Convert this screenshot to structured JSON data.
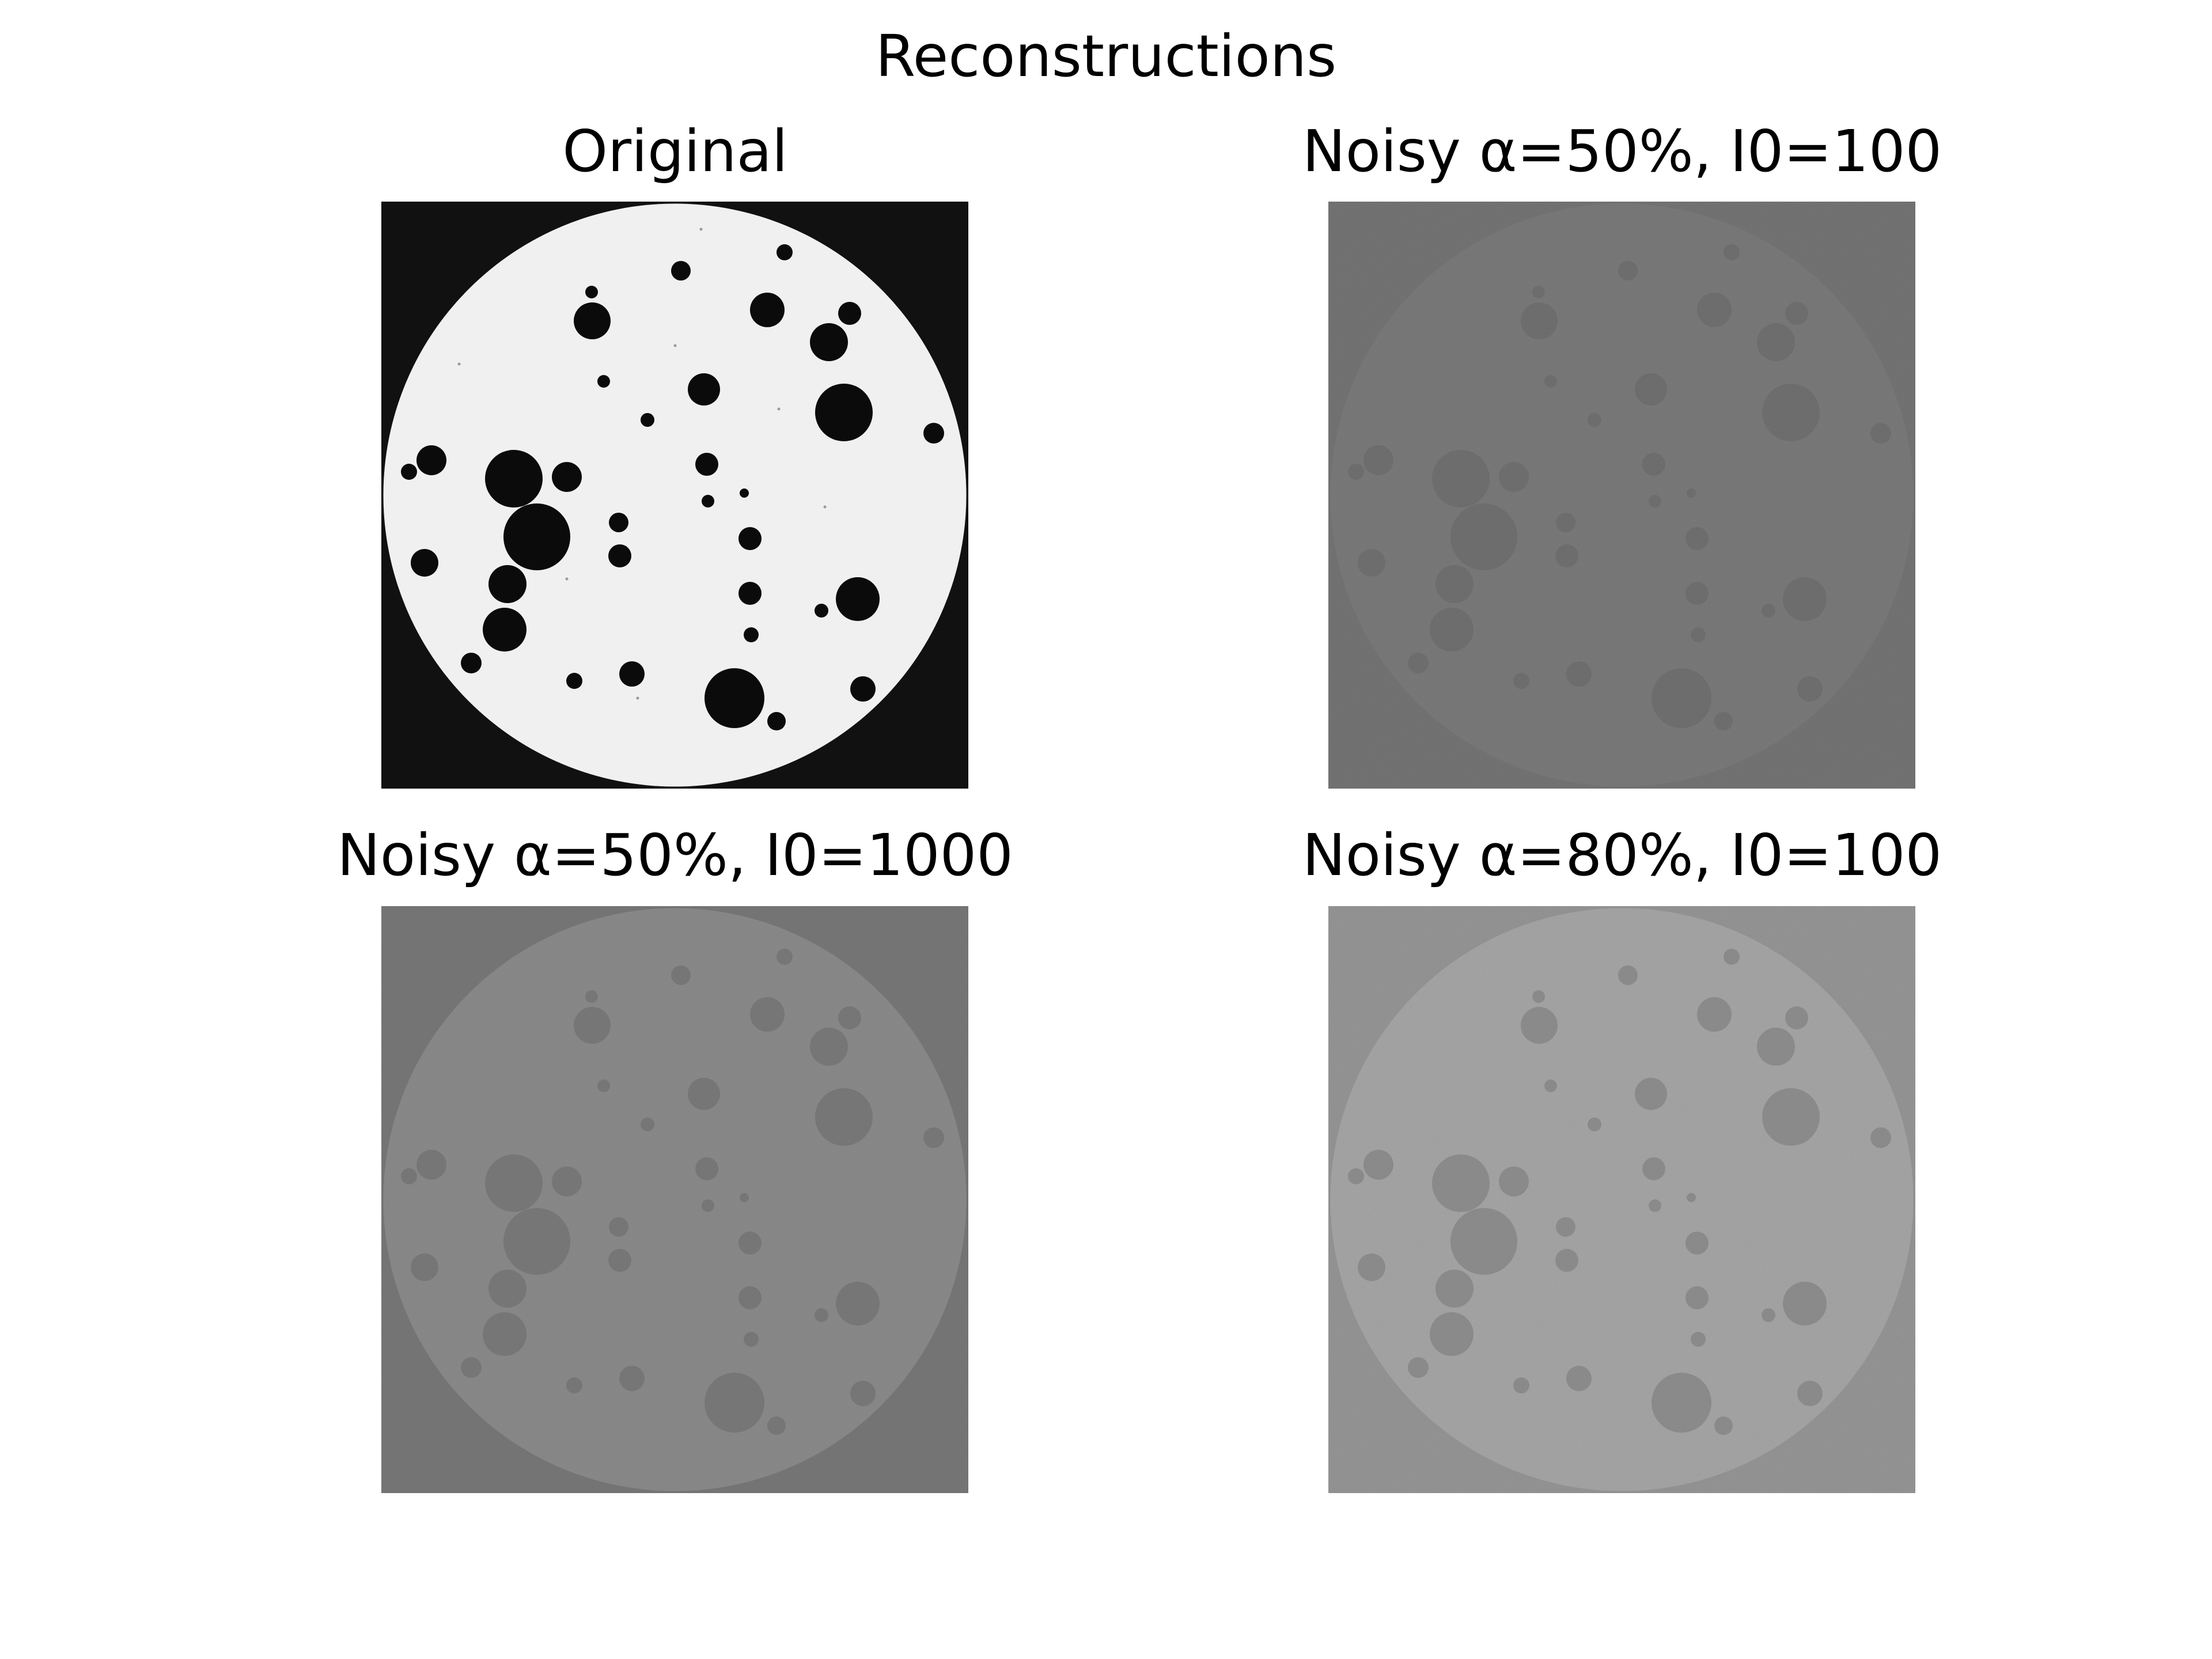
{
  "figure": {
    "suptitle": "Reconstructions"
  },
  "panels": [
    {
      "title": "Original",
      "background_color": "#111111",
      "disc_color": "#f0f0f0",
      "hole_color": "#0b0b0b",
      "noise_opacity": 0
    },
    {
      "title": "Noisy α=50%, I0=100",
      "background_color": "#6c6c6c",
      "disc_color": "#727272",
      "hole_color": "#686868",
      "noise_opacity": 0.12
    },
    {
      "title": "Noisy α=50%, I0=1000",
      "background_color": "#727272",
      "disc_color": "#858585",
      "hole_color": "#747474",
      "noise_opacity": 0.06
    },
    {
      "title": "Noisy α=80%, I0=100",
      "background_color": "#8c8c8c",
      "disc_color": "#9e9e9e",
      "hole_color": "#848484",
      "noise_opacity": 0.22
    }
  ]
}
